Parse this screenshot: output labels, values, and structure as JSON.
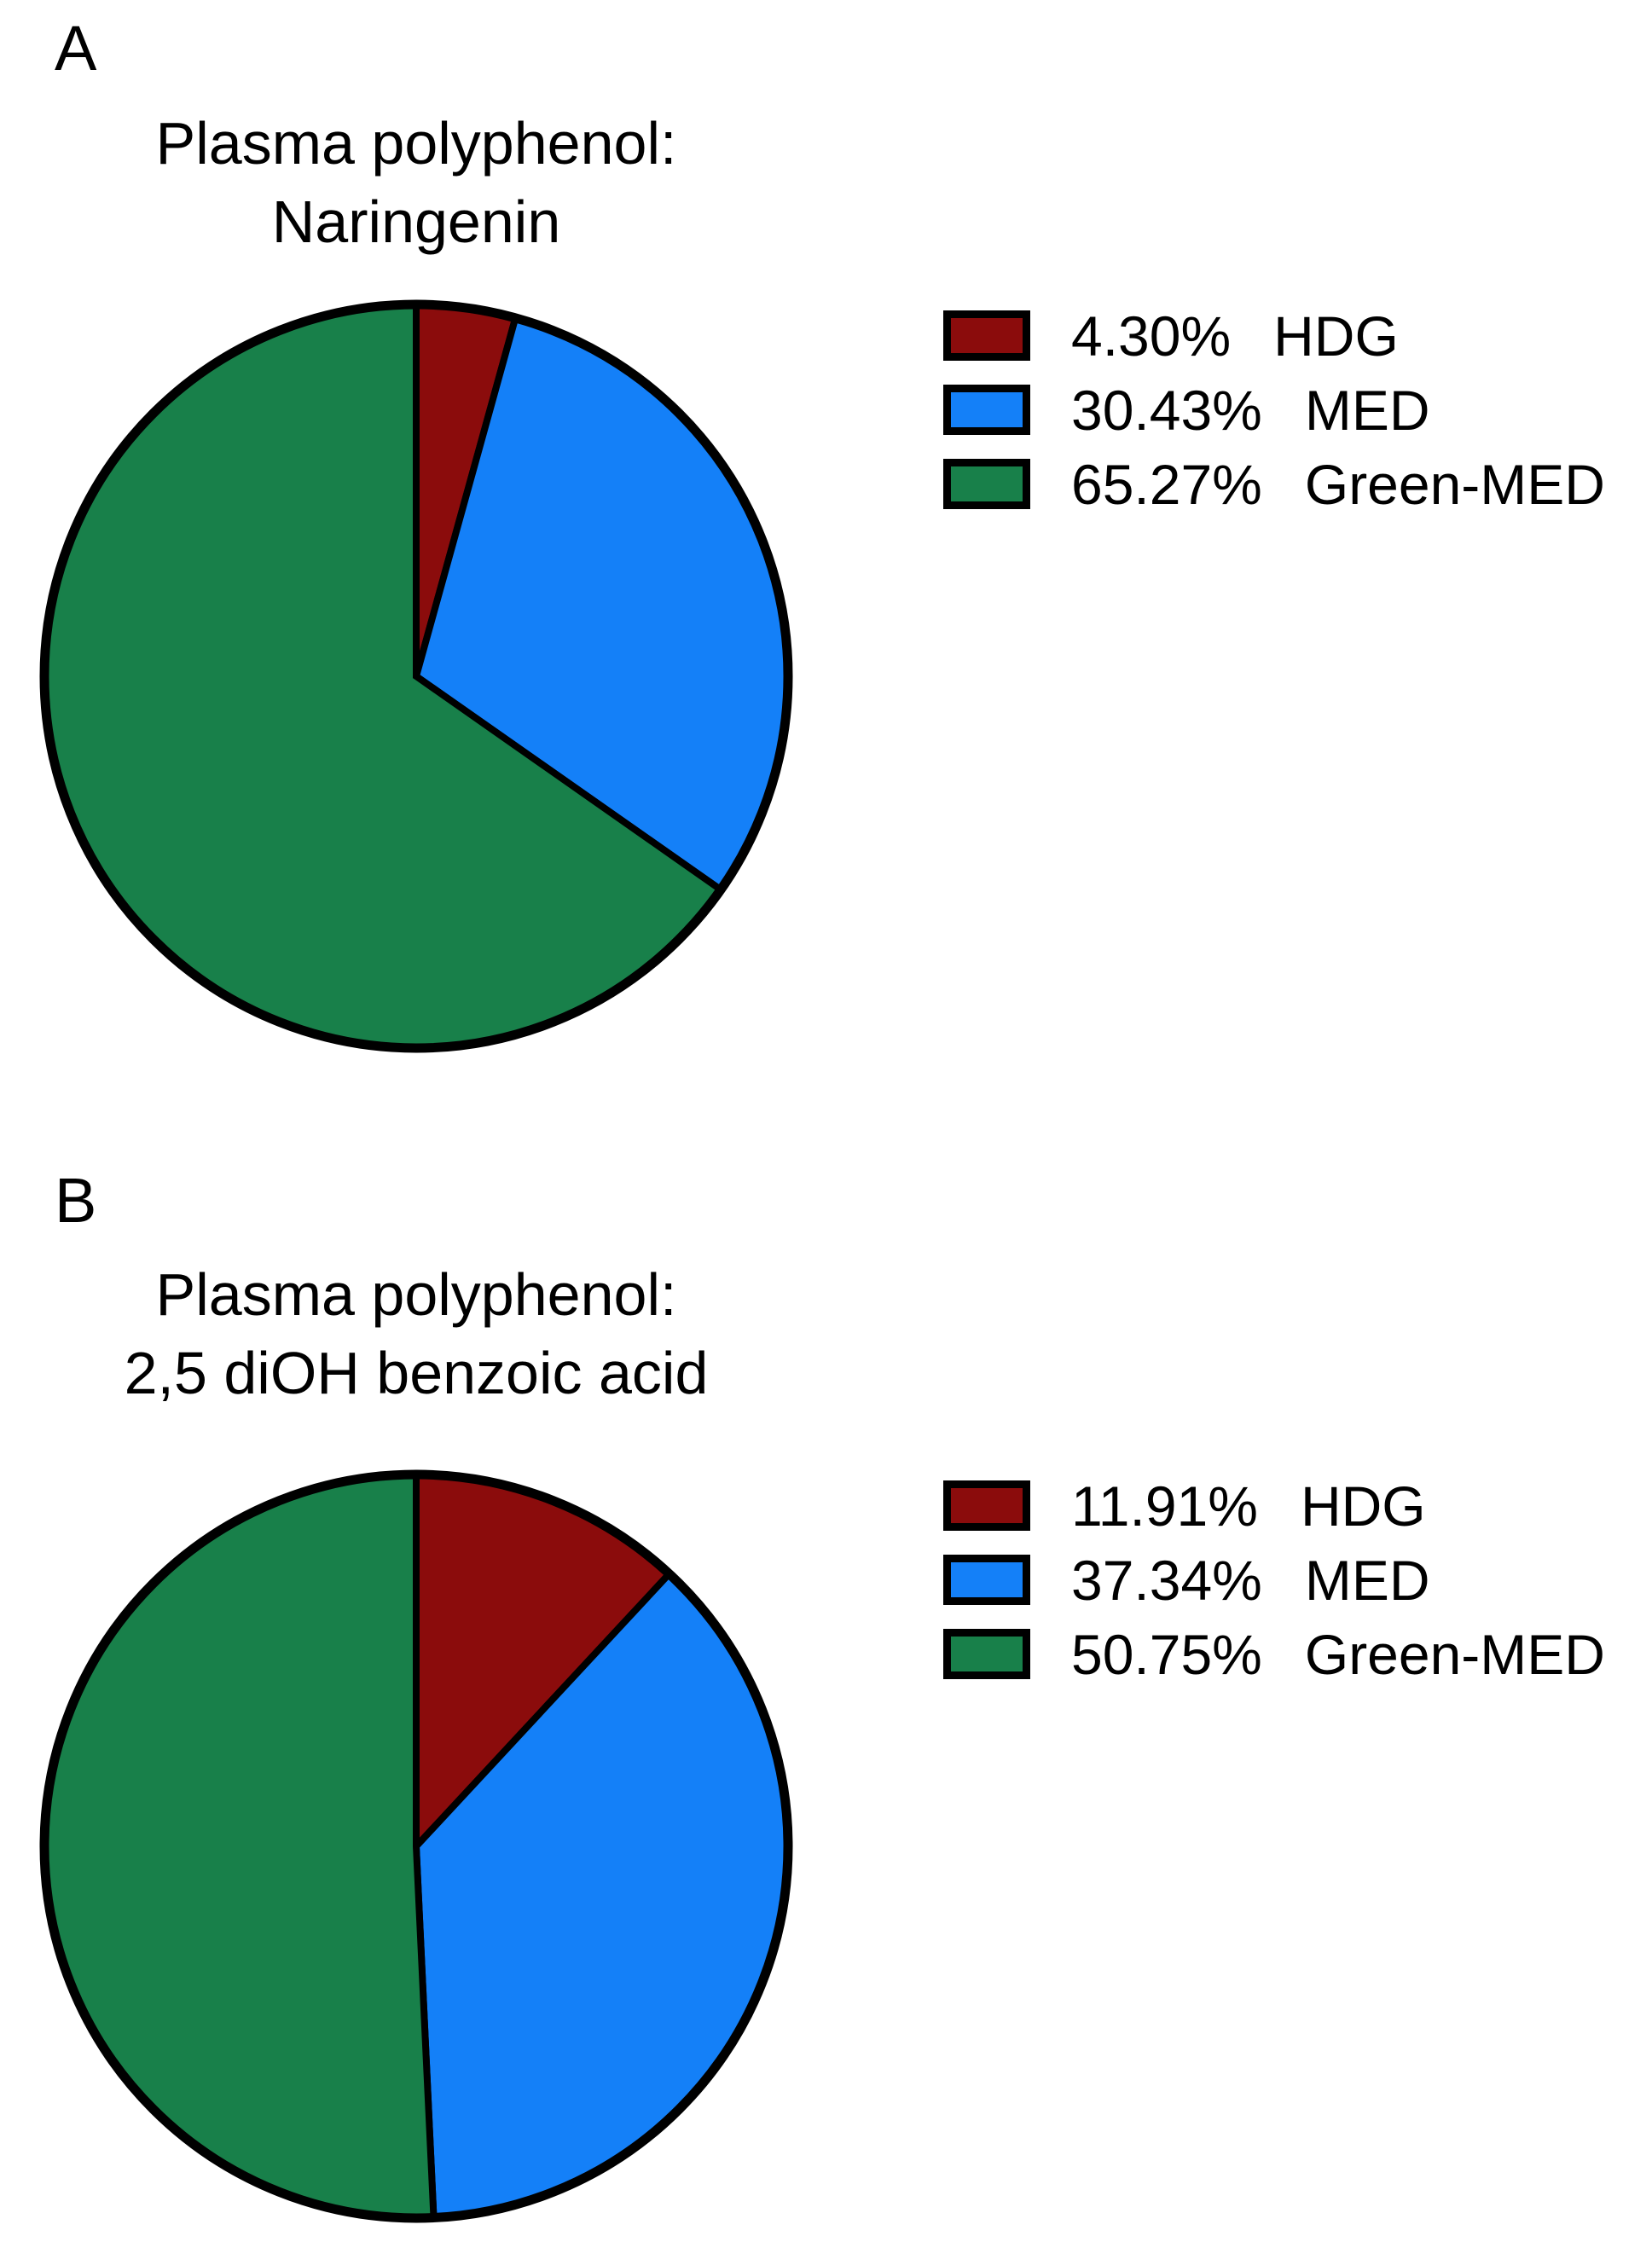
{
  "figure": {
    "background": "#FFFFFF",
    "panels": [
      {
        "label": "A",
        "title_line1": "Plasma polyphenol:",
        "title_line2": "Naringenin",
        "legend": [
          {
            "percent": "4.30%",
            "name": "HDG",
            "color": "#8B0C0C"
          },
          {
            "percent": "30.43%",
            "name": "MED",
            "color": "#1480F8"
          },
          {
            "percent": "65.27%",
            "name": "Green-MED",
            "color": "#18804A"
          }
        ]
      },
      {
        "label": "B",
        "title_line1": "Plasma polyphenol:",
        "title_line2": "2,5 diOH benzoic acid",
        "legend": [
          {
            "percent": "11.91%",
            "name": "HDG",
            "color": "#8B0C0C"
          },
          {
            "percent": "37.34%",
            "name": "MED",
            "color": "#1480F8"
          },
          {
            "percent": "50.75%",
            "name": "Green-MED",
            "color": "#18804A"
          }
        ]
      }
    ]
  },
  "chart_data": [
    {
      "type": "pie",
      "title": "Plasma polyphenol: Naringenin",
      "labels": [
        "HDG",
        "MED",
        "Green-MED"
      ],
      "values": [
        4.3,
        30.43,
        65.27
      ],
      "colors": [
        "#8B0C0C",
        "#1480F8",
        "#18804A"
      ],
      "start_angle_deg": 0,
      "direction": "clockwise",
      "slice_stroke": "#000000",
      "slice_stroke_width": 8,
      "rim_stroke_width": 11,
      "legend_position": "right",
      "legend_entries": [
        "4.30% HDG",
        "30.43% MED",
        "65.27% Green-MED"
      ]
    },
    {
      "type": "pie",
      "title": "Plasma polyphenol: 2,5 diOH benzoic acid",
      "labels": [
        "HDG",
        "MED",
        "Green-MED"
      ],
      "values": [
        11.91,
        37.34,
        50.75
      ],
      "colors": [
        "#8B0C0C",
        "#1480F8",
        "#18804A"
      ],
      "start_angle_deg": 0,
      "direction": "clockwise",
      "slice_stroke": "#000000",
      "slice_stroke_width": 8,
      "rim_stroke_width": 11,
      "legend_position": "right",
      "legend_entries": [
        "11.91% HDG",
        "37.34% MED",
        "50.75% Green-MED"
      ]
    }
  ]
}
